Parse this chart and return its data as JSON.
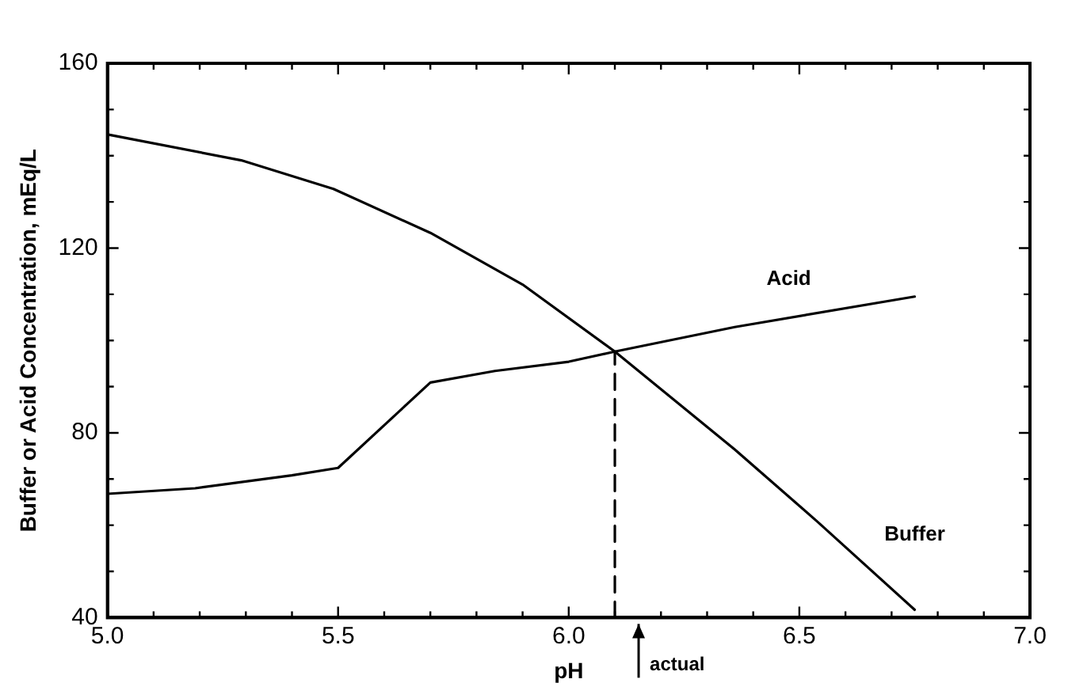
{
  "chart_data": {
    "type": "line",
    "xlabel": "pH",
    "ylabel": "Buffer or Acid Concentration, mEq/L",
    "xlim": [
      5.0,
      7.0
    ],
    "xticks": [
      {
        "value": 5.0,
        "label": "5.0"
      },
      {
        "value": 5.1,
        "label": null
      },
      {
        "value": 5.2,
        "label": null
      },
      {
        "value": 5.3,
        "label": null
      },
      {
        "value": 5.4,
        "label": null
      },
      {
        "value": 5.5,
        "label": "5.5"
      },
      {
        "value": 5.6,
        "label": null
      },
      {
        "value": 5.7,
        "label": null
      },
      {
        "value": 5.8,
        "label": null
      },
      {
        "value": 5.9,
        "label": null
      },
      {
        "value": 6.0,
        "label": "6.0"
      },
      {
        "value": 6.1,
        "label": null
      },
      {
        "value": 6.2,
        "label": null
      },
      {
        "value": 6.3,
        "label": null
      },
      {
        "value": 6.4,
        "label": null
      },
      {
        "value": 6.5,
        "label": "6.5"
      },
      {
        "value": 6.6,
        "label": null
      },
      {
        "value": 6.7,
        "label": null
      },
      {
        "value": 6.8,
        "label": null
      },
      {
        "value": 6.9,
        "label": null
      },
      {
        "value": 7.0,
        "label": "7.0"
      }
    ],
    "ylim": [
      40,
      160
    ],
    "yticks": [
      40,
      {
        "value": 50,
        "label": null
      },
      {
        "value": 60,
        "label": null
      },
      {
        "value": 70,
        "label": null
      },
      80,
      {
        "value": 90,
        "label": null
      },
      {
        "value": 100,
        "label": null
      },
      {
        "value": 110,
        "label": null
      },
      120,
      {
        "value": 130,
        "label": null
      },
      {
        "value": 140,
        "label": null
      },
      {
        "value": 150,
        "label": null
      },
      160
    ],
    "grid": false,
    "legend": false,
    "marker": "none",
    "series": [
      {
        "name": "Buffer",
        "color": "#000000",
        "x": [
          5.0,
          5.29,
          5.49,
          5.7,
          5.9,
          6.1,
          6.36,
          6.54,
          6.75
        ],
        "values": [
          144.6,
          139.0,
          132.8,
          123.3,
          112.1,
          97.6,
          76.4,
          60.7,
          41.7
        ]
      },
      {
        "name": "Acid",
        "color": "#000000",
        "x": [
          5.0,
          5.19,
          5.4,
          5.5,
          5.7,
          5.84,
          6.0,
          6.1,
          6.36,
          6.75
        ],
        "values": [
          66.8,
          68.0,
          70.8,
          72.4,
          90.9,
          93.4,
          95.4,
          97.6,
          102.9,
          109.5
        ]
      },
      {
        "line_style": "dashed",
        "color": "#000000",
        "x": [
          6.1,
          6.1
        ],
        "values": [
          40,
          97.6
        ]
      }
    ],
    "annotations": [
      "actual"
    ]
  }
}
